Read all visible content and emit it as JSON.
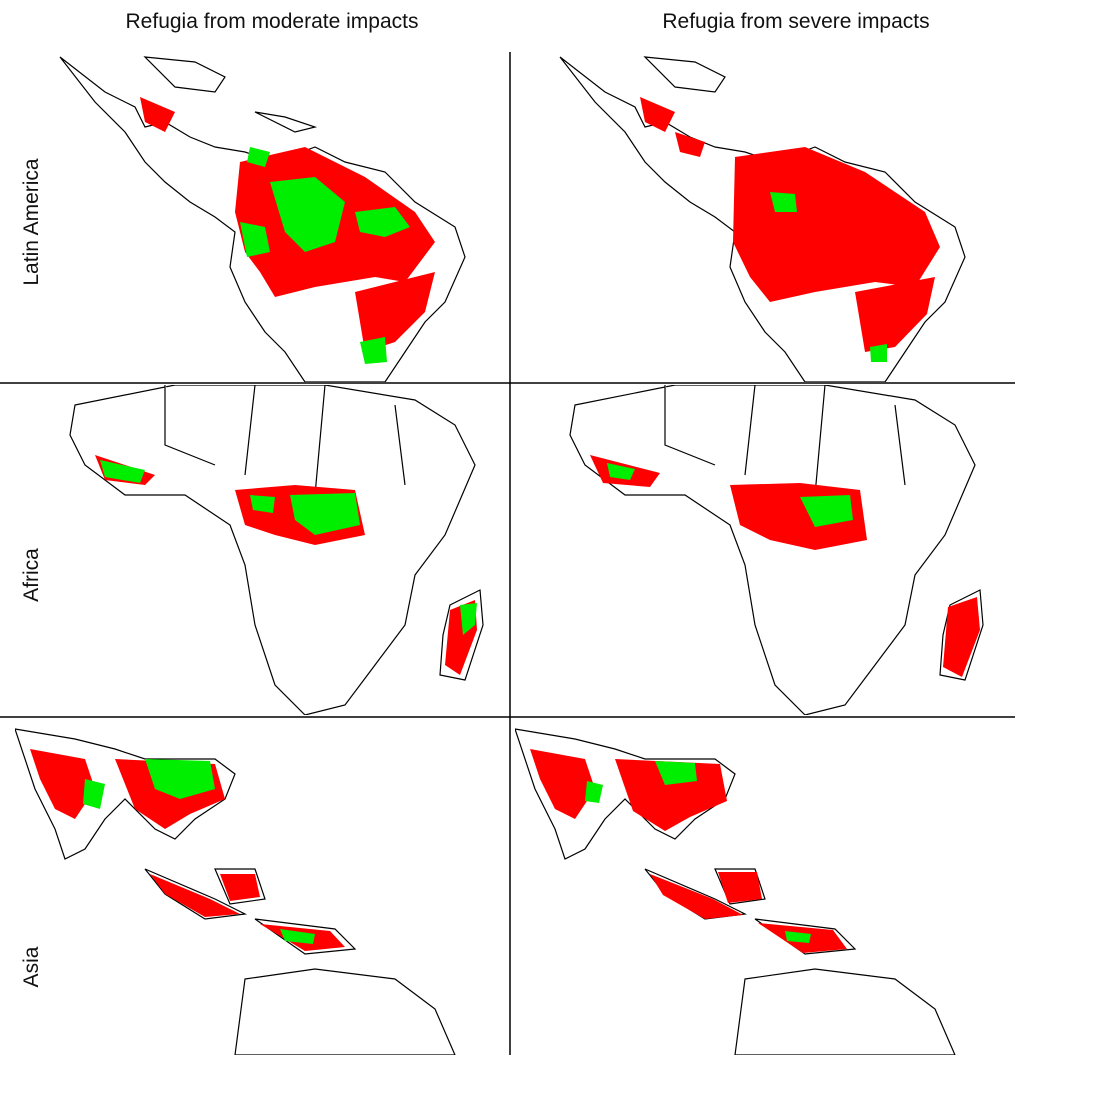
{
  "title": "",
  "columns": [
    {
      "label": "Refugia from moderate impacts"
    },
    {
      "label": "Refugia from severe impacts"
    }
  ],
  "rows": [
    {
      "label": "Latin America"
    },
    {
      "label": "Africa"
    },
    {
      "label": "Asia"
    }
  ],
  "colors": {
    "refugia": "#00ee00",
    "impacted": "#ff0000",
    "boundary": "#000000",
    "land": "#ffffff"
  }
}
